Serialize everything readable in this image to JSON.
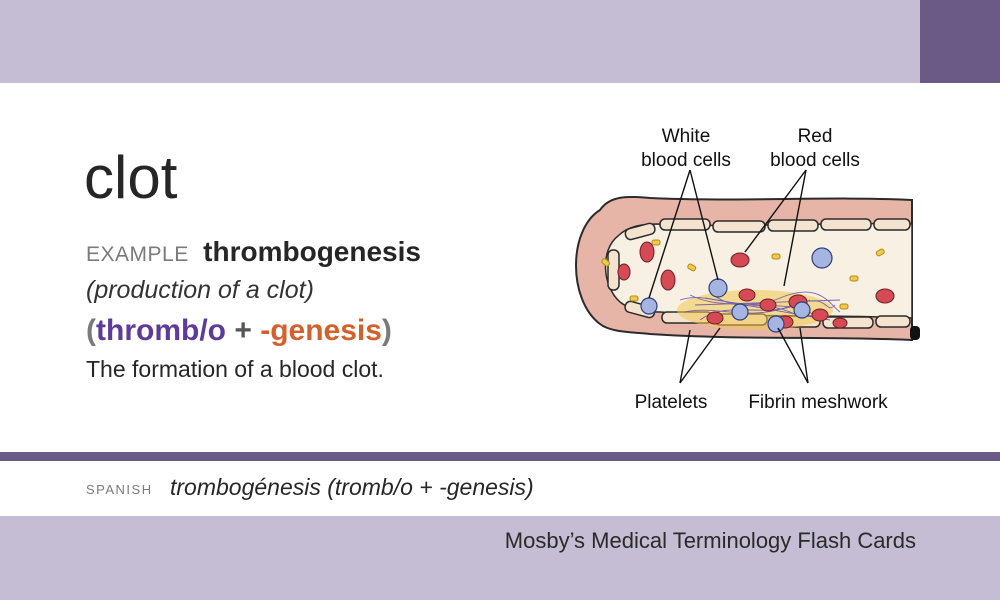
{
  "card": {
    "term": "clot",
    "example_label": "EXAMPLE",
    "example_word": "thrombogenesis",
    "meaning": "(production of a clot)",
    "parts": {
      "open": "(",
      "root": "thromb/o",
      "plus": "+",
      "suffix": "-genesis",
      "close": ")"
    },
    "definition": "The formation of a blood clot.",
    "spanish_label": "SPANISH",
    "spanish_text": "trombogénesis (tromb/o + -genesis)",
    "footer_title": "Mosby’s Medical Terminology Flash Cards"
  },
  "illustration": {
    "labels": {
      "white_line1": "White",
      "white_line2": "blood cells",
      "red_line1": "Red",
      "red_line2": "blood cells",
      "platelets": "Platelets",
      "fibrin": "Fibrin meshwork"
    }
  },
  "colors": {
    "band": "#c4bdd3",
    "accent": "#6b5a86",
    "root": "#5d3b9a",
    "suffix": "#d3612c"
  }
}
